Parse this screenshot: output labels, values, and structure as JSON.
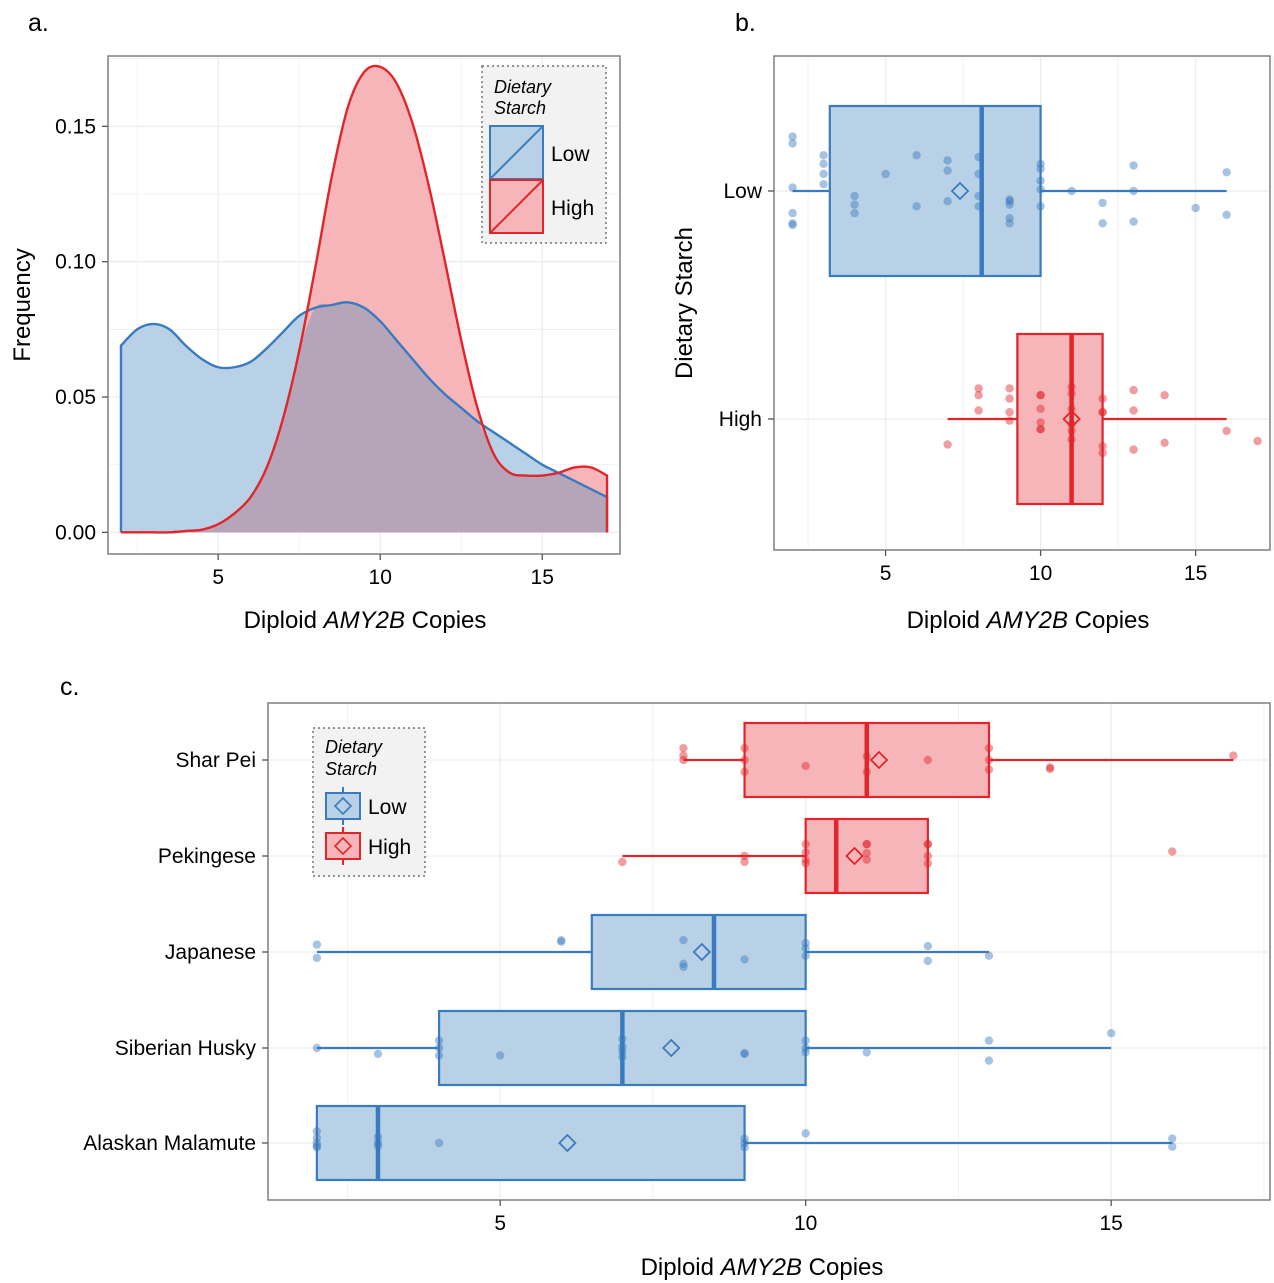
{
  "colors": {
    "low": "#3a7bbf",
    "low_fill": "#b9d1e6",
    "high": "#e0262a",
    "high_fill": "#f6b5b9",
    "overlap_fill": "#b6a5b8",
    "grid": "#ececec",
    "legend_bg": "#f2f2f2"
  },
  "legend": {
    "title_line1": "Dietary",
    "title_line2": "Starch",
    "low_label": "Low",
    "high_label": "High"
  },
  "chart_data": [
    {
      "panel": "a.",
      "type": "area",
      "ylabel": "Frequency",
      "xlabel_pre": "Diploid ",
      "xlabel_gene": "AMY2B",
      "xlabel_post": " Copies",
      "xlim": [
        1.6,
        17.4
      ],
      "ylim": [
        -0.008,
        0.176
      ],
      "xticks": [
        5,
        10,
        15
      ],
      "yticks": [
        "0.00",
        "0.05",
        "0.10",
        "0.15"
      ],
      "legend_position": "top-right",
      "series": [
        {
          "name": "Low",
          "x": [
            2,
            2.5,
            3,
            3.5,
            4,
            4.5,
            5,
            5.5,
            6,
            6.5,
            7,
            7.5,
            8,
            8.5,
            9,
            9.5,
            10,
            10.5,
            11,
            11.5,
            12,
            12.5,
            13,
            13.5,
            14,
            14.5,
            15,
            15.5,
            16,
            16.5,
            17
          ],
          "y": [
            0.069,
            0.075,
            0.077,
            0.075,
            0.069,
            0.064,
            0.061,
            0.061,
            0.063,
            0.068,
            0.074,
            0.08,
            0.083,
            0.084,
            0.085,
            0.083,
            0.078,
            0.071,
            0.064,
            0.057,
            0.051,
            0.046,
            0.041,
            0.037,
            0.033,
            0.029,
            0.025,
            0.022,
            0.019,
            0.016,
            0.013
          ]
        },
        {
          "name": "High",
          "x": [
            2,
            2.5,
            3,
            3.5,
            4,
            4.5,
            5,
            5.5,
            6,
            6.5,
            7,
            7.5,
            8,
            8.5,
            9,
            9.5,
            10,
            10.5,
            11,
            11.5,
            12,
            12.5,
            13,
            13.5,
            14,
            14.5,
            15,
            15.5,
            16,
            16.5,
            17
          ],
          "y": [
            0,
            0,
            0,
            0,
            0.0005,
            0.001,
            0.003,
            0.007,
            0.013,
            0.024,
            0.042,
            0.067,
            0.098,
            0.131,
            0.157,
            0.17,
            0.172,
            0.166,
            0.151,
            0.128,
            0.1,
            0.071,
            0.046,
            0.029,
            0.022,
            0.021,
            0.021,
            0.022,
            0.024,
            0.024,
            0.021
          ]
        }
      ]
    },
    {
      "panel": "b.",
      "type": "box",
      "ylabel": "Dietary Starch",
      "xlabel_pre": "Diploid ",
      "xlabel_gene": "AMY2B",
      "xlabel_post": " Copies",
      "xlim": [
        1.4,
        17.4
      ],
      "xticks": [
        5,
        10,
        15
      ],
      "categories": [
        "Low",
        "High"
      ],
      "boxes": [
        {
          "name": "Low",
          "whisker_low": 2,
          "q1": 3.2,
          "median": 8.1,
          "q3": 10,
          "whisker_high": 16,
          "mean": 7.4,
          "points": [
            [
              2,
              0.32
            ],
            [
              2,
              0.28
            ],
            [
              2,
              0.02
            ],
            [
              2,
              -0.13
            ],
            [
              2,
              -0.19
            ],
            [
              2,
              -0.2
            ],
            [
              3,
              0.21
            ],
            [
              3,
              0.16
            ],
            [
              3,
              0.1
            ],
            [
              3,
              0.04
            ],
            [
              4,
              -0.03
            ],
            [
              4,
              -0.08
            ],
            [
              4,
              -0.13
            ],
            [
              5,
              0.1
            ],
            [
              6,
              0.21
            ],
            [
              6,
              -0.09
            ],
            [
              7,
              0.18
            ],
            [
              7,
              0.12
            ],
            [
              7,
              -0.06
            ],
            [
              8,
              0.2
            ],
            [
              8,
              0.1
            ],
            [
              8,
              -0.03
            ],
            [
              8,
              -0.09
            ],
            [
              9,
              -0.05
            ],
            [
              9,
              -0.06
            ],
            [
              9,
              -0.08
            ],
            [
              9,
              -0.16
            ],
            [
              9,
              -0.19
            ],
            [
              10,
              0.16
            ],
            [
              10,
              0.13
            ],
            [
              10,
              0.06
            ],
            [
              10,
              0.01
            ],
            [
              10,
              -0.09
            ],
            [
              11,
              0.0
            ],
            [
              12,
              -0.07
            ],
            [
              12,
              -0.19
            ],
            [
              13,
              0.15
            ],
            [
              13,
              0.0
            ],
            [
              13,
              -0.18
            ],
            [
              15,
              -0.1
            ],
            [
              16,
              0.11
            ],
            [
              16,
              -0.14
            ]
          ]
        },
        {
          "name": "High",
          "whisker_low": 7,
          "q1": 9.25,
          "median": 11,
          "q3": 12,
          "whisker_high": 16,
          "mean": 11,
          "points": [
            [
              7,
              -0.15
            ],
            [
              8,
              0.18
            ],
            [
              8,
              0.14
            ],
            [
              8,
              0.05
            ],
            [
              9,
              0.18
            ],
            [
              9,
              0.12
            ],
            [
              9,
              0.04
            ],
            [
              9,
              -0.01
            ],
            [
              10,
              0.14
            ],
            [
              10,
              0.14
            ],
            [
              10,
              0.06
            ],
            [
              10,
              -0.02
            ],
            [
              10,
              -0.06
            ],
            [
              10,
              -0.06
            ],
            [
              11,
              0.19
            ],
            [
              11,
              0.15
            ],
            [
              11,
              0.06
            ],
            [
              11,
              -0.03
            ],
            [
              11,
              -0.07
            ],
            [
              11,
              -0.12
            ],
            [
              12,
              0.12
            ],
            [
              12,
              0.04
            ],
            [
              12,
              0.04
            ],
            [
              12,
              -0.16
            ],
            [
              12,
              -0.2
            ],
            [
              13,
              0.17
            ],
            [
              13,
              0.05
            ],
            [
              13,
              -0.18
            ],
            [
              14,
              0.14
            ],
            [
              14,
              -0.14
            ],
            [
              16,
              -0.07
            ],
            [
              17,
              -0.13
            ]
          ]
        }
      ]
    },
    {
      "panel": "c.",
      "type": "box",
      "ylabel": "",
      "xlabel_pre": "Diploid ",
      "xlabel_gene": "AMY2B",
      "xlabel_post": " Copies",
      "xlim": [
        1.2,
        17.6
      ],
      "xticks": [
        5,
        10,
        15
      ],
      "categories": [
        "Shar Pei",
        "Pekingese",
        "Japanese",
        "Siberian Husky",
        "Alaskan Malamute"
      ],
      "boxes": [
        {
          "name": "Shar Pei",
          "starch": "High",
          "whisker_low": 8,
          "q1": 9,
          "median": 11,
          "q3": 13,
          "whisker_high": 17,
          "mean": 11.2,
          "points": [
            [
              8,
              0.16
            ],
            [
              8,
              0.06
            ],
            [
              8,
              0.0
            ],
            [
              9,
              0.16
            ],
            [
              9,
              0.0
            ],
            [
              9,
              -0.16
            ],
            [
              10,
              -0.08
            ],
            [
              11,
              0.05
            ],
            [
              11,
              -0.16
            ],
            [
              12,
              0.0
            ],
            [
              13,
              0.16
            ],
            [
              13,
              0.0
            ],
            [
              13,
              -0.13
            ],
            [
              14,
              -0.1
            ],
            [
              14,
              -0.12
            ],
            [
              17,
              0.06
            ]
          ]
        },
        {
          "name": "Pekingese",
          "starch": "High",
          "whisker_low": 7,
          "q1": 10,
          "median": 10.5,
          "q3": 12,
          "whisker_high": 12,
          "mean": 10.8,
          "points": [
            [
              7,
              -0.08
            ],
            [
              9,
              0.0
            ],
            [
              9,
              -0.08
            ],
            [
              10,
              0.16
            ],
            [
              10,
              0.05
            ],
            [
              10,
              -0.05
            ],
            [
              10,
              -0.1
            ],
            [
              11,
              0.16
            ],
            [
              11,
              0.16
            ],
            [
              11,
              0.04
            ],
            [
              11,
              -0.05
            ],
            [
              12,
              0.16
            ],
            [
              12,
              0.16
            ],
            [
              12,
              0.0
            ],
            [
              12,
              -0.1
            ],
            [
              16,
              0.06
            ]
          ]
        },
        {
          "name": "Japanese",
          "starch": "Low",
          "whisker_low": 2,
          "q1": 6.5,
          "median": 8.5,
          "q3": 10,
          "whisker_high": 13,
          "mean": 8.3,
          "points": [
            [
              2,
              0.1
            ],
            [
              2,
              -0.08
            ],
            [
              6,
              0.16
            ],
            [
              6,
              0.14
            ],
            [
              8,
              0.16
            ],
            [
              8,
              -0.16
            ],
            [
              8,
              -0.2
            ],
            [
              9,
              -0.1
            ],
            [
              10,
              0.12
            ],
            [
              10,
              0.05
            ],
            [
              10,
              -0.05
            ],
            [
              12,
              0.08
            ],
            [
              12,
              -0.12
            ],
            [
              13,
              -0.05
            ]
          ]
        },
        {
          "name": "Siberian Husky",
          "starch": "Low",
          "whisker_low": 2,
          "q1": 4,
          "median": 7,
          "q3": 10,
          "whisker_high": 15,
          "mean": 7.8,
          "points": [
            [
              2,
              0.0
            ],
            [
              3,
              -0.08
            ],
            [
              4,
              0.1
            ],
            [
              4,
              0.0
            ],
            [
              4,
              -0.1
            ],
            [
              5,
              -0.1
            ],
            [
              7,
              0.12
            ],
            [
              7,
              0.02
            ],
            [
              7,
              -0.04
            ],
            [
              7,
              -0.12
            ],
            [
              9,
              -0.07
            ],
            [
              9,
              -0.08
            ],
            [
              10,
              0.1
            ],
            [
              10,
              0.0
            ],
            [
              10,
              -0.06
            ],
            [
              11,
              -0.06
            ],
            [
              13,
              0.1
            ],
            [
              13,
              -0.17
            ],
            [
              15,
              0.2
            ]
          ]
        },
        {
          "name": "Alaskan Malamute",
          "starch": "Low",
          "whisker_low": 2,
          "q1": 2,
          "median": 3,
          "q3": 9,
          "whisker_high": 16,
          "mean": 6.1,
          "points": [
            [
              2,
              0.16
            ],
            [
              2,
              0.07
            ],
            [
              2,
              0.0
            ],
            [
              2,
              -0.04
            ],
            [
              2,
              -0.06
            ],
            [
              3,
              0.08
            ],
            [
              3,
              0.0
            ],
            [
              3,
              -0.04
            ],
            [
              4,
              0.0
            ],
            [
              9,
              0.06
            ],
            [
              9,
              0.0
            ],
            [
              9,
              -0.06
            ],
            [
              10,
              0.13
            ],
            [
              16,
              0.06
            ],
            [
              16,
              -0.05
            ]
          ]
        }
      ]
    }
  ]
}
